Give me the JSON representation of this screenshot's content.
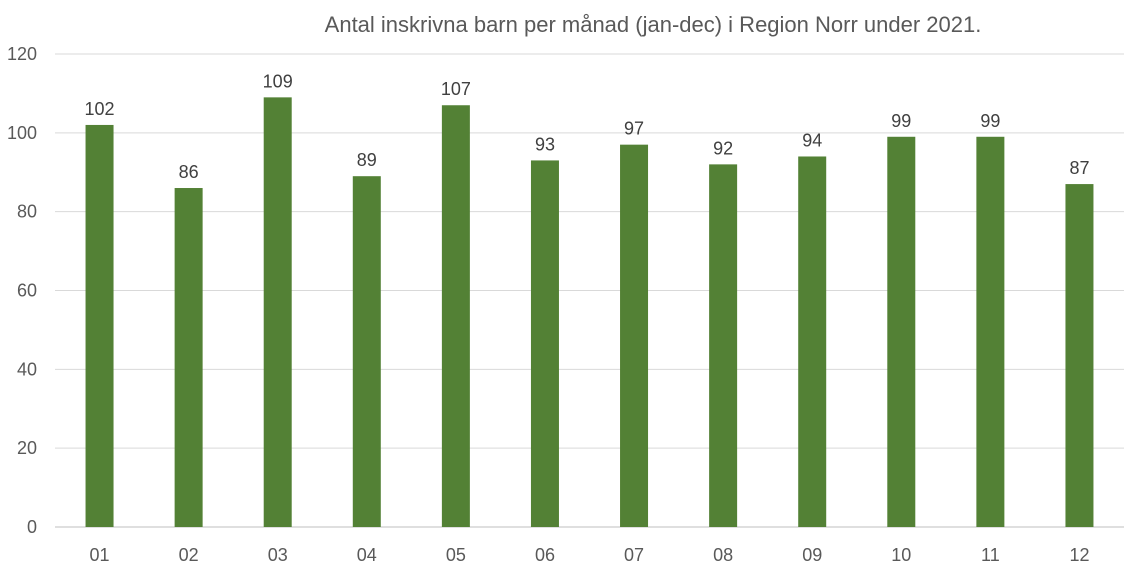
{
  "chart_data": {
    "type": "bar",
    "title": "Antal inskrivna barn per månad (jan-dec) i Region Norr under 2021.",
    "xlabel": "",
    "ylabel": "",
    "categories": [
      "01",
      "02",
      "03",
      "04",
      "05",
      "06",
      "07",
      "08",
      "09",
      "10",
      "11",
      "12"
    ],
    "values": [
      102,
      86,
      109,
      89,
      107,
      93,
      97,
      92,
      94,
      99,
      99,
      87
    ],
    "ylim": [
      0,
      120
    ],
    "yticks": [
      0,
      20,
      40,
      60,
      80,
      100,
      120
    ],
    "grid": true,
    "legend": "none",
    "bar_color": "#538135"
  }
}
